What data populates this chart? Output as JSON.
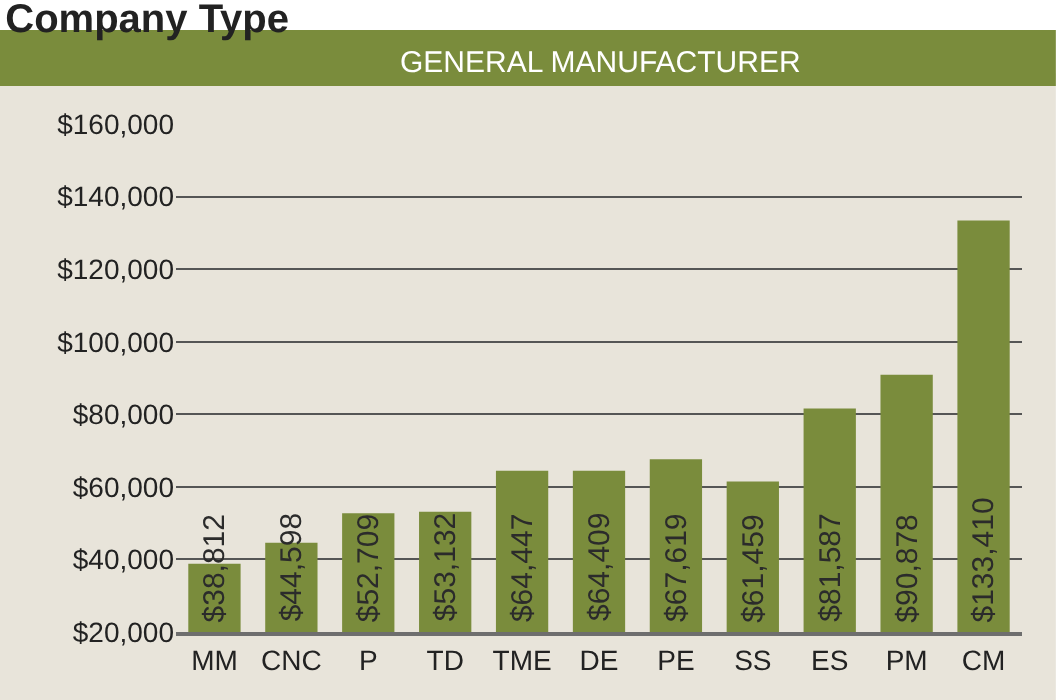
{
  "chart_data": {
    "type": "bar",
    "title": "Company Type",
    "subtitle": "GENERAL MANUFACTURER",
    "categories": [
      "MM",
      "CNC",
      "P",
      "TD",
      "TME",
      "DE",
      "PE",
      "SS",
      "ES",
      "PM",
      "CM"
    ],
    "values": [
      38812,
      44598,
      52709,
      53132,
      64447,
      64409,
      67619,
      61459,
      81587,
      90878,
      133410
    ],
    "value_labels": [
      "$38,812",
      "$44,598",
      "$52,709",
      "$53,132",
      "$64,447",
      "$64,409",
      "$67,619",
      "$61,459",
      "$81,587",
      "$90,878",
      "$133,410"
    ],
    "color": "#7a8c3c",
    "ylim": [
      20000,
      160000
    ],
    "yticks": [
      {
        "value": 20000,
        "label": "$20,000"
      },
      {
        "value": 40000,
        "label": "$40,000"
      },
      {
        "value": 60000,
        "label": "$60,000"
      },
      {
        "value": 80000,
        "label": "$80,000"
      },
      {
        "value": 100000,
        "label": "$100,000"
      },
      {
        "value": 120000,
        "label": "$120,000"
      },
      {
        "value": 140000,
        "label": "$140,000"
      },
      {
        "value": 160000,
        "label": "$160,000"
      }
    ],
    "grid": "y",
    "legend": false
  }
}
